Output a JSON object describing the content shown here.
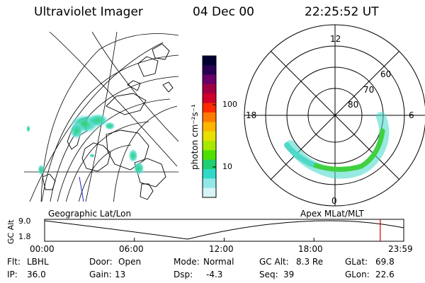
{
  "header": {
    "instrument": "Ultraviolet Imager",
    "date": "04 Dec 00",
    "time": "22:25:52 UT"
  },
  "colorbar": {
    "unit_label": "photon cm⁻²s⁻¹",
    "ticks": [
      "100",
      "10"
    ],
    "colors": [
      "#000033",
      "#2a0052",
      "#6a006a",
      "#a00040",
      "#d0002a",
      "#ff2a00",
      "#ff7a00",
      "#ffb400",
      "#e8e000",
      "#a8e800",
      "#50e000",
      "#20d070",
      "#30d8c8",
      "#90e8e8",
      "#d8f4f4"
    ]
  },
  "map_geo": {
    "label": "Geographic Lat/Lon"
  },
  "map_polar": {
    "label": "Apex MLat/MLT",
    "mlt_labels": {
      "top": "12",
      "left": "18",
      "right": "6",
      "bottom": "0"
    },
    "lat_labels": [
      "60",
      "70",
      "80"
    ]
  },
  "altitude_plot": {
    "ylabel": "GC Alt",
    "y_ticks": [
      "9.0",
      "1.8"
    ],
    "x_ticks": [
      "00:00",
      "06:00",
      "12:00",
      "18:00",
      "23:59"
    ],
    "marker_color": "#cc0000",
    "marker_time_hours": 22.43
  },
  "status": {
    "flt_label": "Flt:",
    "flt_value": "LBHL",
    "ip_label": "IP:",
    "ip_value": "36.0",
    "door_label": "Door:",
    "door_value": "Open",
    "gain_label": "Gain:",
    "gain_value": "13",
    "mode_label": "Mode:",
    "mode_value": "Normal",
    "dsp_label": "Dsp:",
    "dsp_value": "-4.3",
    "gcalt_label": "GC Alt:",
    "gcalt_value": "8.3 Re",
    "seq_label": "Seq:",
    "seq_value": "39",
    "glat_label": "GLat:",
    "glat_value": "69.8",
    "glon_label": "GLon:",
    "glon_value": "22.6"
  }
}
